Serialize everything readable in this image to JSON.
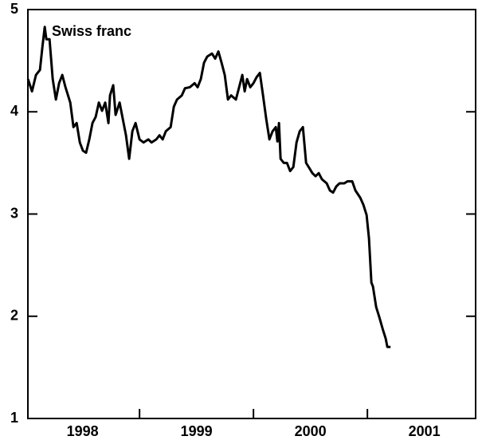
{
  "chart_data": {
    "type": "line",
    "annotation": "Swiss franc",
    "x": [
      1998.021,
      1998.056,
      1998.091,
      1998.126,
      1998.147,
      1998.168,
      1998.182,
      1998.21,
      1998.238,
      1998.266,
      1998.294,
      1998.322,
      1998.35,
      1998.392,
      1998.42,
      1998.448,
      1998.476,
      1998.503,
      1998.531,
      1998.559,
      1998.587,
      1998.615,
      1998.643,
      1998.671,
      1998.699,
      1998.727,
      1998.741,
      1998.769,
      1998.79,
      1998.825,
      1998.853,
      1998.881,
      1998.909,
      1998.937,
      1998.965,
      1999.0,
      1999.035,
      1999.077,
      1999.105,
      1999.147,
      1999.175,
      1999.203,
      1999.231,
      1999.273,
      1999.301,
      1999.329,
      1999.371,
      1999.399,
      1999.441,
      1999.483,
      1999.51,
      1999.538,
      1999.566,
      1999.594,
      1999.636,
      1999.664,
      1999.692,
      1999.72,
      1999.748,
      1999.776,
      1999.804,
      1999.846,
      1999.874,
      1999.902,
      1999.923,
      1999.944,
      1999.972,
      2000.0,
      2000.028,
      2000.056,
      2000.084,
      2000.112,
      2000.14,
      2000.168,
      2000.196,
      2000.21,
      2000.224,
      2000.238,
      2000.266,
      2000.294,
      2000.322,
      2000.35,
      2000.378,
      2000.406,
      2000.434,
      2000.462,
      2000.49,
      2000.517,
      2000.545,
      2000.573,
      2000.601,
      2000.643,
      2000.671,
      2000.699,
      2000.727,
      2000.755,
      2000.797,
      2000.825,
      2000.867,
      2000.895,
      2000.937,
      2000.965,
      2000.993,
      2001.014,
      2001.035,
      2001.049,
      2001.077,
      2001.105,
      2001.133,
      2001.161,
      2001.175,
      2001.203
    ],
    "series": [
      {
        "color": "#000000",
        "values": [
          4.32,
          4.2,
          4.36,
          4.41,
          4.63,
          4.83,
          4.71,
          4.71,
          4.32,
          4.12,
          4.28,
          4.36,
          4.24,
          4.09,
          3.85,
          3.89,
          3.7,
          3.62,
          3.6,
          3.73,
          3.89,
          3.95,
          4.09,
          4.01,
          4.09,
          3.89,
          4.16,
          4.26,
          3.97,
          4.09,
          3.93,
          3.77,
          3.54,
          3.81,
          3.89,
          3.73,
          3.7,
          3.73,
          3.7,
          3.73,
          3.77,
          3.73,
          3.81,
          3.85,
          4.05,
          4.12,
          4.16,
          4.23,
          4.24,
          4.28,
          4.24,
          4.32,
          4.48,
          4.54,
          4.57,
          4.52,
          4.59,
          4.48,
          4.36,
          4.12,
          4.16,
          4.12,
          4.24,
          4.36,
          4.2,
          4.32,
          4.24,
          4.28,
          4.34,
          4.38,
          4.16,
          3.93,
          3.73,
          3.81,
          3.85,
          3.71,
          3.89,
          3.54,
          3.5,
          3.5,
          3.42,
          3.46,
          3.7,
          3.81,
          3.85,
          3.5,
          3.45,
          3.4,
          3.37,
          3.4,
          3.34,
          3.3,
          3.23,
          3.21,
          3.27,
          3.3,
          3.3,
          3.32,
          3.32,
          3.23,
          3.16,
          3.09,
          2.99,
          2.76,
          2.33,
          2.29,
          2.09,
          1.99,
          1.88,
          1.78,
          1.7,
          1.7
        ]
      }
    ],
    "xlim": [
      1998.02,
      2001.95
    ],
    "xticks": [
      1999,
      2000,
      2001
    ],
    "xtick_labels": [
      {
        "value": 1998.5,
        "label": "1998"
      },
      {
        "value": 1999.5,
        "label": "1999"
      },
      {
        "value": 2000.5,
        "label": "2000"
      },
      {
        "value": 2001.5,
        "label": "2001"
      }
    ],
    "ylim": [
      1,
      5
    ],
    "yticks": [
      1,
      2,
      3,
      4,
      5
    ]
  }
}
